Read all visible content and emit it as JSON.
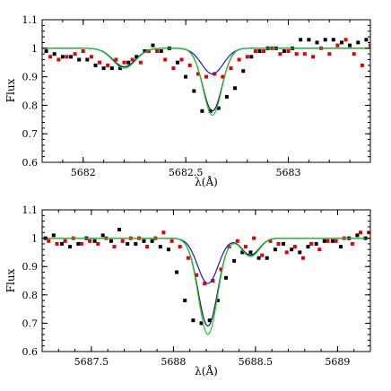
{
  "chart_data": [
    {
      "type": "line",
      "xlabel": "λ(Å)",
      "ylabel": "Flux",
      "xlim": [
        5681.8,
        5683.4
      ],
      "ylim": [
        0.6,
        1.1
      ],
      "xticks": [
        5682,
        5682.5,
        5683
      ],
      "xtick_labels": [
        "5682",
        "5682.5",
        "5683"
      ],
      "yticks": [
        0.6,
        0.7,
        0.8,
        0.9,
        1.0,
        1.1
      ],
      "ytick_labels": [
        "0.6",
        "0.7",
        "0.8",
        "0.9",
        "1",
        "1.1"
      ],
      "series": [
        {
          "color": "#000000",
          "style": "points",
          "x": [
            5681.82,
            5681.86,
            5681.9,
            5681.94,
            5681.98,
            5682.02,
            5682.06,
            5682.1,
            5682.14,
            5682.18,
            5682.22,
            5682.26,
            5682.3,
            5682.34,
            5682.38,
            5682.42,
            5682.46,
            5682.5,
            5682.54,
            5682.58,
            5682.62,
            5682.66,
            5682.7,
            5682.74,
            5682.78,
            5682.82,
            5682.86,
            5682.9,
            5682.94,
            5682.98,
            5683.02,
            5683.06,
            5683.1,
            5683.14,
            5683.18,
            5683.22,
            5683.26,
            5683.3,
            5683.34,
            5683.38
          ],
          "y": [
            0.99,
            0.98,
            0.97,
            0.97,
            0.96,
            0.96,
            0.94,
            0.93,
            0.93,
            0.93,
            0.95,
            0.97,
            0.99,
            1.01,
            0.99,
            1.0,
            0.95,
            0.9,
            0.85,
            0.78,
            0.78,
            0.79,
            0.83,
            0.86,
            0.92,
            0.97,
            0.99,
            1.0,
            1.0,
            0.99,
            1.0,
            1.03,
            1.03,
            1.02,
            1.03,
            1.03,
            1.02,
            1.01,
            1.02,
            1.03
          ]
        },
        {
          "color": "#e00000",
          "style": "points",
          "x": [
            5681.84,
            5681.88,
            5681.92,
            5681.96,
            5682.0,
            5682.04,
            5682.08,
            5682.12,
            5682.16,
            5682.2,
            5682.24,
            5682.28,
            5682.32,
            5682.36,
            5682.4,
            5682.44,
            5682.48,
            5682.52,
            5682.56,
            5682.6,
            5682.64,
            5682.68,
            5682.72,
            5682.76,
            5682.8,
            5682.84,
            5682.88,
            5682.92,
            5682.96,
            5683.0,
            5683.04,
            5683.08,
            5683.12,
            5683.16,
            5683.2,
            5683.24,
            5683.28,
            5683.32,
            5683.36,
            5683.4
          ],
          "y": [
            0.97,
            0.96,
            0.97,
            0.98,
            0.99,
            0.97,
            0.95,
            0.94,
            0.96,
            0.95,
            0.96,
            0.95,
            0.99,
            0.99,
            0.96,
            0.93,
            0.96,
            0.94,
            0.91,
            0.9,
            0.91,
            0.9,
            0.93,
            0.96,
            0.97,
            0.99,
            0.99,
            1.0,
            0.98,
            0.99,
            0.98,
            0.98,
            0.97,
            1.0,
            0.98,
            1.01,
            1.03,
            0.98,
            0.94,
            1.01
          ]
        },
        {
          "color": "#1a1acc",
          "style": "curve",
          "lines": [
            [
              5682.2,
              0.065,
              0.09
            ],
            [
              5682.63,
              0.09,
              0.085
            ]
          ]
        },
        {
          "color": "#1a1a66",
          "style": "curve",
          "lines": [
            [
              5682.2,
              0.065,
              0.09
            ],
            [
              5682.63,
              0.22,
              0.075
            ]
          ]
        },
        {
          "color": "#22cc22",
          "style": "curve",
          "lines": [
            [
              5682.2,
              0.07,
              0.09
            ],
            [
              5682.63,
              0.235,
              0.073
            ]
          ]
        }
      ]
    },
    {
      "type": "line",
      "xlabel": "λ(Å)",
      "ylabel": "Flux",
      "xlim": [
        5687.2,
        5689.2
      ],
      "ylim": [
        0.6,
        1.1
      ],
      "xticks": [
        5687.5,
        5688,
        5688.5,
        5689
      ],
      "xtick_labels": [
        "5687.5",
        "5688",
        "5688.5",
        "5689"
      ],
      "yticks": [
        0.6,
        0.7,
        0.8,
        0.9,
        1.0,
        1.1
      ],
      "ytick_labels": [
        "0.6",
        "0.7",
        "0.8",
        "0.9",
        "1",
        "1.1"
      ],
      "series": [
        {
          "color": "#000000",
          "style": "points",
          "x": [
            5687.22,
            5687.27,
            5687.32,
            5687.37,
            5687.42,
            5687.47,
            5687.52,
            5687.57,
            5687.62,
            5687.67,
            5687.72,
            5687.77,
            5687.82,
            5687.87,
            5687.92,
            5687.97,
            5688.02,
            5688.07,
            5688.12,
            5688.17,
            5688.22,
            5688.27,
            5688.32,
            5688.37,
            5688.42,
            5688.47,
            5688.52,
            5688.57,
            5688.62,
            5688.67,
            5688.72,
            5688.77,
            5688.82,
            5688.87,
            5688.92,
            5688.97,
            5689.02,
            5689.07,
            5689.12,
            5689.17
          ],
          "y": [
            1.0,
            1.01,
            0.98,
            0.97,
            0.98,
            1.0,
            0.99,
            1.01,
            0.99,
            1.03,
            0.98,
            0.98,
            0.99,
            0.99,
            0.97,
            0.96,
            0.88,
            0.78,
            0.71,
            0.7,
            0.71,
            0.78,
            0.86,
            0.92,
            0.95,
            0.95,
            0.93,
            0.93,
            0.96,
            0.98,
            0.96,
            0.95,
            0.97,
            0.98,
            0.99,
            0.99,
            0.97,
            1.0,
            1.01,
            1.0
          ]
        },
        {
          "color": "#e00000",
          "style": "points",
          "x": [
            5687.24,
            5687.29,
            5687.34,
            5687.39,
            5687.44,
            5687.49,
            5687.54,
            5687.59,
            5687.64,
            5687.69,
            5687.74,
            5687.79,
            5687.84,
            5687.89,
            5687.94,
            5687.99,
            5688.04,
            5688.09,
            5688.14,
            5688.19,
            5688.24,
            5688.29,
            5688.34,
            5688.39,
            5688.44,
            5688.49,
            5688.54,
            5688.59,
            5688.64,
            5688.69,
            5688.74,
            5688.79,
            5688.84,
            5688.89,
            5688.94,
            5688.99,
            5689.04,
            5689.09,
            5689.14,
            5689.19
          ],
          "y": [
            0.99,
            0.98,
            0.99,
            1.0,
            0.98,
            0.99,
            0.98,
            1.0,
            0.97,
            0.99,
            1.0,
            1.0,
            0.97,
            1.0,
            1.02,
            0.99,
            0.97,
            0.93,
            0.87,
            0.84,
            0.85,
            0.89,
            0.97,
            0.99,
            0.97,
            1.0,
            0.94,
            0.99,
            0.98,
            0.95,
            0.97,
            0.93,
            0.98,
            0.96,
            0.99,
            0.99,
            1.0,
            0.98,
            1.02,
            1.02
          ]
        },
        {
          "color": "#1a1acc",
          "style": "curve",
          "lines": [
            [
              5688.21,
              0.16,
              0.1
            ],
            [
              5688.47,
              0.06,
              0.085
            ]
          ]
        },
        {
          "color": "#1a1a66",
          "style": "curve",
          "lines": [
            [
              5688.21,
              0.31,
              0.095
            ],
            [
              5688.47,
              0.06,
              0.085
            ]
          ]
        },
        {
          "color": "#22cc22",
          "style": "curve",
          "lines": [
            [
              5688.21,
              0.34,
              0.093
            ],
            [
              5688.47,
              0.065,
              0.085
            ]
          ]
        }
      ]
    }
  ]
}
